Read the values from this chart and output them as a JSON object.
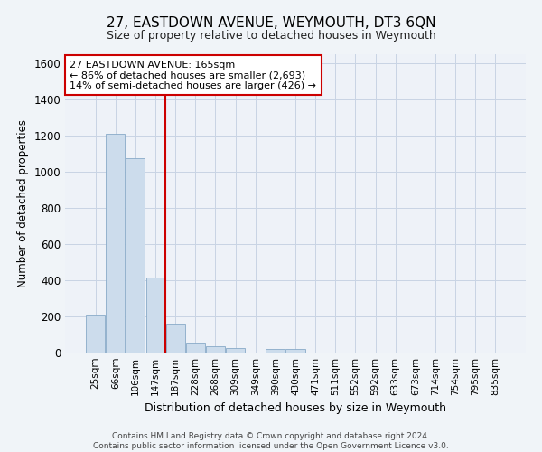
{
  "title": "27, EASTDOWN AVENUE, WEYMOUTH, DT3 6QN",
  "subtitle": "Size of property relative to detached houses in Weymouth",
  "xlabel": "Distribution of detached houses by size in Weymouth",
  "ylabel": "Number of detached properties",
  "bar_labels": [
    "25sqm",
    "66sqm",
    "106sqm",
    "147sqm",
    "187sqm",
    "228sqm",
    "268sqm",
    "309sqm",
    "349sqm",
    "390sqm",
    "430sqm",
    "471sqm",
    "511sqm",
    "552sqm",
    "592sqm",
    "633sqm",
    "673sqm",
    "714sqm",
    "754sqm",
    "795sqm",
    "835sqm"
  ],
  "bar_values": [
    205,
    1210,
    1075,
    415,
    160,
    55,
    35,
    25,
    0,
    20,
    20,
    0,
    0,
    0,
    0,
    0,
    0,
    0,
    0,
    0,
    0
  ],
  "bar_color": "#ccdcec",
  "bar_edge_color": "#88aac8",
  "property_line_color": "#cc0000",
  "annotation_text": "27 EASTDOWN AVENUE: 165sqm\n← 86% of detached houses are smaller (2,693)\n14% of semi-detached houses are larger (426) →",
  "annotation_box_color": "#cc0000",
  "ylim": [
    0,
    1650
  ],
  "yticks": [
    0,
    200,
    400,
    600,
    800,
    1000,
    1200,
    1400,
    1600
  ],
  "footer": "Contains HM Land Registry data © Crown copyright and database right 2024.\nContains public sector information licensed under the Open Government Licence v3.0.",
  "bg_color": "#f0f4f8",
  "plot_bg_color": "#eef2f8",
  "grid_color": "#c8d4e4"
}
